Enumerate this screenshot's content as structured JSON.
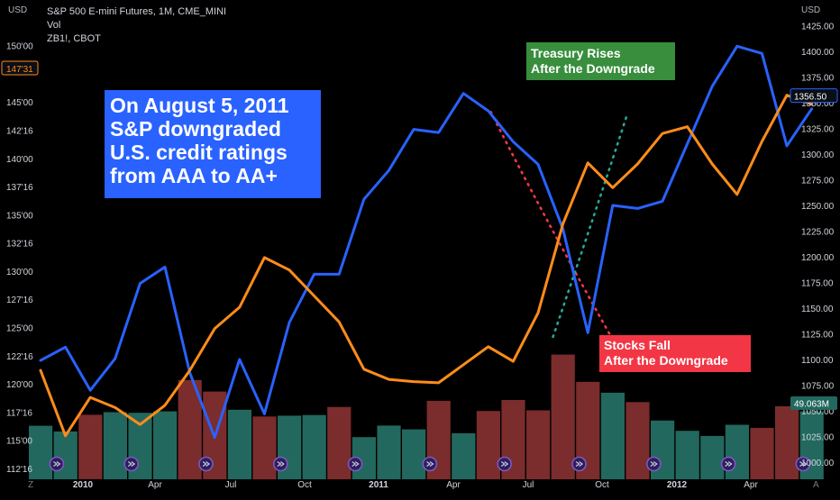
{
  "header": {
    "title": "S&P 500 E-mini Futures, 1M, CME_MINI",
    "vol_label": "Vol",
    "symbol_label": "ZB1!, CBOT",
    "left_currency": "USD",
    "right_currency": "USD"
  },
  "annotations": {
    "main_lines": [
      "On August 5, 2011",
      "S&P downgraded",
      "U.S. credit ratings",
      "from AAA to AA+"
    ],
    "treasury_lines": [
      "Treasury Rises",
      "After the Downgrade"
    ],
    "stocks_lines": [
      "Stocks Fall",
      "After the Downgrade"
    ]
  },
  "bottom_labels": {
    "left_icon": "Z",
    "right_icon": "A"
  },
  "chart_data": {
    "type": "line",
    "title": "S&P 500 E-mini Futures, 1M, CME_MINI",
    "x_labels": [
      "2010",
      "Apr",
      "Jul",
      "Oct",
      "2011",
      "Apr",
      "Jul",
      "Oct",
      "2012",
      "Apr"
    ],
    "series": [
      {
        "name": "S&P 500 E-mini Futures",
        "color": "#2962ff",
        "axis": "right",
        "values": [
          1099,
          1112,
          1070,
          1101,
          1174,
          1190,
          1087,
          1024,
          1100,
          1047,
          1136,
          1183,
          1183,
          1256,
          1284,
          1324,
          1321,
          1359,
          1342,
          1312,
          1290,
          1227,
          1126,
          1250,
          1247,
          1254,
          1310,
          1366,
          1405,
          1398,
          1308,
          1344
        ]
      },
      {
        "name": "ZB1!, CBOT",
        "color": "#ff8c1a",
        "axis": "left",
        "values": [
          121.2,
          115.4,
          118.8,
          117.9,
          116.4,
          118.1,
          121.2,
          124.9,
          126.8,
          131.2,
          130.1,
          127.8,
          125.5,
          121.3,
          120.4,
          120.2,
          120.1,
          121.7,
          123.3,
          122.0,
          126.3,
          134.2,
          139.6,
          137.4,
          139.5,
          142.2,
          142.8,
          139.5,
          136.8,
          141.5,
          145.6,
          144.8
        ]
      }
    ],
    "volume": {
      "label": "Vol",
      "values": [
        26.4,
        23.6,
        31.8,
        33.1,
        32.8,
        33.5,
        49.0,
        43.3,
        34.3,
        31.0,
        31.4,
        31.7,
        35.7,
        20.8,
        26.5,
        24.6,
        38.7,
        22.7,
        33.7,
        39.1,
        34.0,
        61.5,
        48.1,
        42.7,
        38.1,
        29.0,
        23.9,
        21.4,
        26.9,
        25.4,
        36.0,
        33.5
      ],
      "up": [
        true,
        true,
        false,
        true,
        true,
        true,
        false,
        false,
        true,
        false,
        true,
        true,
        false,
        true,
        true,
        true,
        false,
        true,
        false,
        false,
        false,
        false,
        false,
        true,
        false,
        true,
        true,
        true,
        true,
        false,
        false,
        true
      ],
      "up_color": "#22685e",
      "down_color": "#7b2c2c"
    },
    "right_axis": {
      "ticks": [
        1000,
        1025,
        1050,
        1075,
        1100,
        1125,
        1150,
        1175,
        1200,
        1225,
        1250,
        1275,
        1300,
        1325,
        1350,
        1375,
        1400,
        1425
      ],
      "tick_labels": [
        "1000.00",
        "1025.00",
        "1050.00",
        "1075.00",
        "1100.00",
        "1125.00",
        "1150.00",
        "1175.00",
        "1200.00",
        "1225.00",
        "1250.00",
        "1275.00",
        "1300.00",
        "1325.00",
        "1350.00",
        "1375.00",
        "1400.00",
        "1425.00"
      ],
      "last_value_label": "1356.50",
      "last_value": 1356.5,
      "volume_label": "49.063M",
      "volume_value": 49.063
    },
    "left_axis": {
      "ticks": [
        112.5,
        115,
        117.5,
        120,
        122.5,
        125,
        127.5,
        130,
        132.5,
        135,
        137.5,
        140,
        142.5,
        145,
        150
      ],
      "tick_labels": [
        "112'16",
        "115'00",
        "117'16",
        "120'00",
        "122'16",
        "125'00",
        "127'16",
        "130'00",
        "132'16",
        "135'00",
        "137'16",
        "140'00",
        "142'16",
        "145'00",
        "150'00"
      ],
      "last_value_label": "147'31",
      "last_value": 147.97
    },
    "trend_arrows": {
      "red": {
        "color": "#f23645",
        "from": [
          18.1,
          1341
        ],
        "to": [
          23.1,
          1115
        ]
      },
      "green": {
        "color": "#26a69a",
        "from": [
          20.6,
          1122
        ],
        "to": [
          23.6,
          1340
        ]
      }
    },
    "event_markers": [
      0,
      3,
      6,
      9,
      12,
      15,
      18,
      21,
      24,
      27,
      30
    ]
  }
}
